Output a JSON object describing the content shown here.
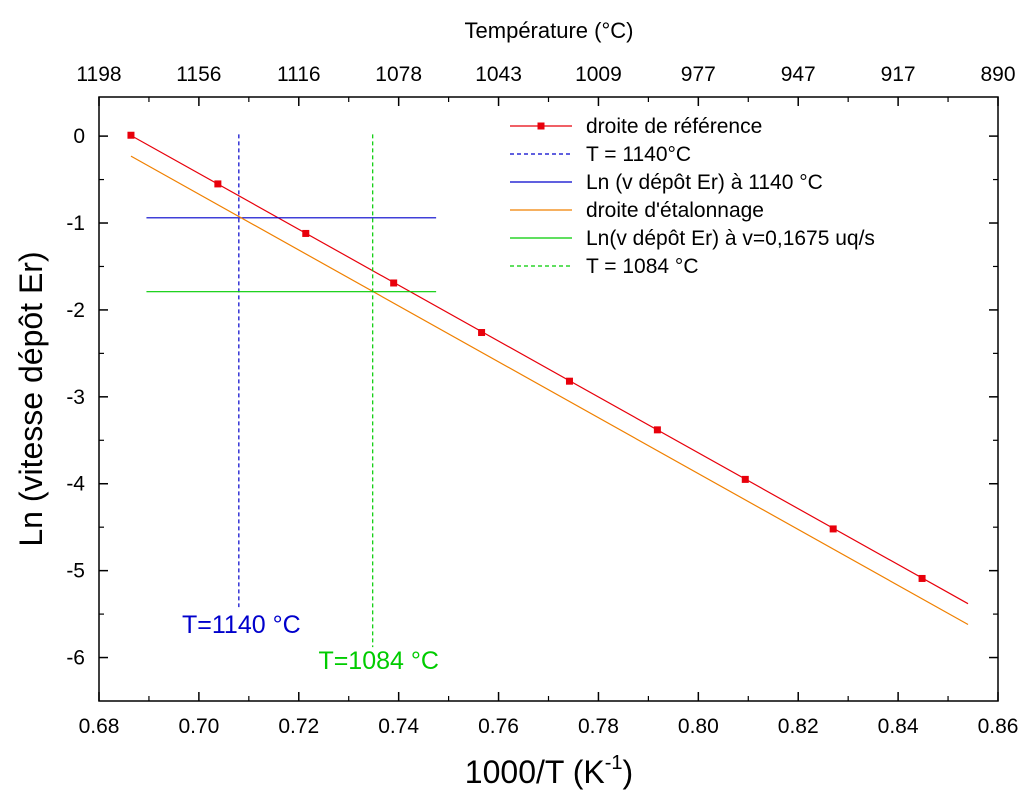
{
  "chart_data": {
    "type": "line",
    "xlabel_main": "1000/T (K",
    "xlabel_sup": "-1",
    "xlabel_close": ")",
    "ylabel": "Ln (vitesse dépôt Er)",
    "top_axis_label": "Température (°C)",
    "xlim": [
      0.68,
      0.86
    ],
    "ylim": [
      -6.5,
      0.45
    ],
    "x_ticks": [
      "0.68",
      "0.70",
      "0.72",
      "0.74",
      "0.76",
      "0.78",
      "0.80",
      "0.82",
      "0.84",
      "0.86"
    ],
    "y_ticks": [
      "0",
      "-1",
      "-2",
      "-3",
      "-4",
      "-5",
      "-6"
    ],
    "top_ticks": [
      "1198",
      "1156",
      "1116",
      "1078",
      "1043",
      "1009",
      "977",
      "947",
      "917",
      "890"
    ],
    "grid": false,
    "legend_position": "top-right",
    "series": [
      {
        "name": "droite de référence",
        "color": "#e8000b",
        "style": "solid",
        "marker": "square",
        "line": [
          [
            0.686,
            0.02
          ],
          [
            0.854,
            -5.38
          ]
        ],
        "x": [
          0.6864,
          0.7038,
          0.7214,
          0.739,
          0.7566,
          0.7742,
          0.7918,
          0.8094,
          0.827,
          0.8448
        ],
        "y": [
          0.01,
          -0.55,
          -1.12,
          -1.69,
          -2.26,
          -2.82,
          -3.38,
          -3.95,
          -4.52,
          -5.09
        ]
      },
      {
        "name": "T = 1140°C",
        "color": "#0000cc",
        "style": "dashed",
        "line": [
          [
            0.708,
            0.02
          ],
          [
            0.708,
            -5.42
          ]
        ]
      },
      {
        "name": "Ln (v dépôt Er) à 1140 °C",
        "color": "#0000cc",
        "style": "solid",
        "line": [
          [
            0.6895,
            -0.94
          ],
          [
            0.7475,
            -0.94
          ]
        ]
      },
      {
        "name": "droite d'étalonnage",
        "color": "#f08000",
        "style": "solid",
        "line": [
          [
            0.6864,
            -0.23
          ],
          [
            0.854,
            -5.62
          ]
        ]
      },
      {
        "name": "Ln(v dépôt Er) à v=0,1675 uq/s",
        "color": "#00cc00",
        "style": "solid",
        "line": [
          [
            0.6895,
            -1.79
          ],
          [
            0.7475,
            -1.79
          ]
        ]
      },
      {
        "name": "T = 1084 °C",
        "color": "#00cc00",
        "style": "dashed",
        "line": [
          [
            0.7348,
            0.02
          ],
          [
            0.7348,
            -5.88
          ]
        ]
      }
    ],
    "annotations": [
      {
        "text": "T=1140 °C",
        "color": "#0000cc",
        "x": 0.7085,
        "y": -5.72
      },
      {
        "text": "T=1084 °C",
        "color": "#00cc00",
        "x": 0.736,
        "y": -6.13
      }
    ]
  }
}
